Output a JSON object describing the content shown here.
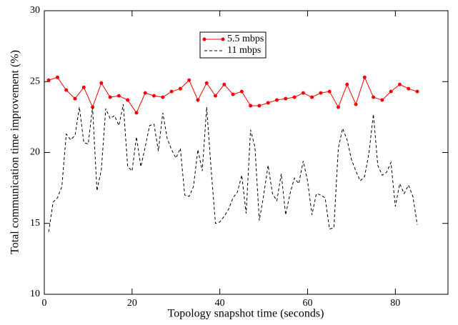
{
  "chart_data": {
    "type": "line",
    "xlabel": "Topology snapshot time (seconds)",
    "ylabel": "Total communication time improvement (%)",
    "xlim": [
      0,
      92
    ],
    "ylim": [
      10,
      30
    ],
    "xticks": [
      0,
      20,
      40,
      60,
      80
    ],
    "yticks": [
      10,
      15,
      20,
      25,
      30
    ],
    "legend": "top-center",
    "series": [
      {
        "name": "5.5 mbps",
        "color": "#ff0000",
        "marker": true,
        "dashed": false,
        "x": [
          1,
          3,
          5,
          7,
          9,
          11,
          13,
          15,
          17,
          19,
          21,
          23,
          25,
          27,
          29,
          31,
          33,
          35,
          37,
          39,
          41,
          43,
          45,
          47,
          49,
          51,
          53,
          55,
          57,
          59,
          61,
          63,
          65,
          67,
          69,
          71,
          73,
          75,
          77,
          79,
          81,
          83,
          85
        ],
        "values": [
          25.1,
          25.3,
          24.4,
          23.8,
          24.6,
          23.2,
          24.9,
          23.9,
          24.0,
          23.7,
          22.8,
          24.2,
          24.0,
          23.9,
          24.3,
          24.5,
          25.1,
          23.7,
          24.9,
          24.0,
          24.8,
          24.1,
          24.3,
          23.3,
          23.3,
          23.5,
          23.7,
          23.8,
          23.9,
          24.2,
          23.9,
          24.2,
          24.3,
          23.2,
          24.8,
          23.4,
          25.3,
          23.9,
          23.7,
          24.3,
          24.8,
          24.5,
          24.3
        ]
      },
      {
        "name": "11 mbps",
        "color": "#000000",
        "marker": false,
        "dashed": true,
        "x": [
          1,
          2,
          3,
          4,
          5,
          6,
          7,
          8,
          9,
          10,
          11,
          12,
          13,
          14,
          15,
          16,
          17,
          18,
          19,
          20,
          21,
          22,
          23,
          24,
          25,
          26,
          27,
          28,
          29,
          30,
          31,
          32,
          33,
          34,
          35,
          36,
          37,
          38,
          39,
          40,
          41,
          42,
          43,
          44,
          45,
          46,
          47,
          48,
          49,
          50,
          51,
          52,
          53,
          54,
          55,
          56,
          57,
          58,
          59,
          60,
          61,
          62,
          63,
          64,
          65,
          66,
          67,
          68,
          69,
          70,
          71,
          72,
          73,
          74,
          75,
          76,
          77,
          78,
          79,
          80,
          81,
          82,
          83,
          84,
          85
        ],
        "values": [
          14.4,
          16.5,
          16.8,
          17.6,
          21.3,
          20.9,
          21.2,
          23.2,
          20.7,
          20.6,
          23.2,
          17.3,
          18.8,
          23.1,
          22.4,
          22.6,
          21.9,
          23.4,
          19.0,
          18.7,
          21.1,
          19.0,
          20.4,
          21.9,
          22.0,
          20.1,
          22.8,
          21.0,
          20.2,
          19.6,
          20.3,
          17.0,
          16.9,
          17.6,
          20.2,
          18.7,
          23.2,
          18.9,
          15.0,
          15.1,
          15.5,
          16.0,
          16.8,
          17.2,
          18.4,
          15.7,
          21.6,
          20.4,
          15.2,
          17.0,
          19.1,
          17.1,
          16.6,
          18.5,
          15.6,
          17.1,
          18.2,
          17.8,
          19.4,
          18.0,
          15.6,
          17.1,
          17.0,
          16.8,
          14.6,
          14.7,
          20.3,
          21.7,
          20.9,
          19.5,
          18.7,
          18.0,
          18.3,
          20.0,
          22.7,
          19.1,
          18.4,
          18.6,
          19.3,
          16.2,
          17.8,
          17.1,
          17.7,
          16.9,
          14.9
        ]
      }
    ]
  }
}
